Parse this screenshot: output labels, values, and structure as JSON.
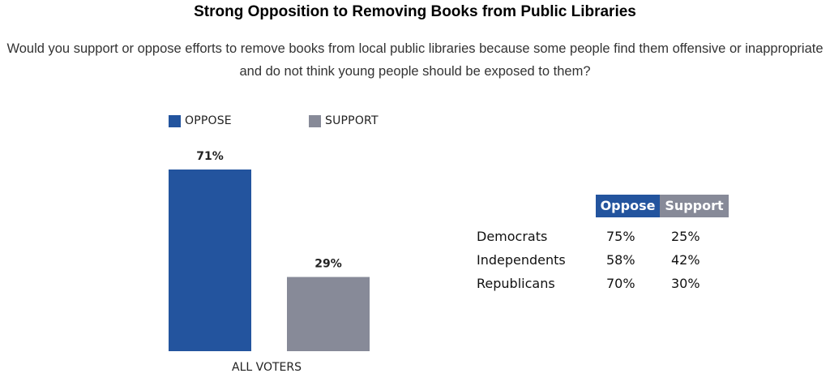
{
  "title": "Strong Opposition to Removing Books from Public Libraries",
  "subtitle": "Would you support or oppose efforts to remove books from local public libraries because some people find them offensive or inappropriate and do not think young people should be exposed to them?",
  "colors": {
    "oppose": "#23549e",
    "support": "#878a98"
  },
  "chart_data": {
    "type": "bar",
    "categories": [
      "ALL VOTERS"
    ],
    "series": [
      {
        "name": "OPPOSE",
        "values": [
          71
        ],
        "labels": [
          "71%"
        ]
      },
      {
        "name": "SUPPORT",
        "values": [
          29
        ],
        "labels": [
          "29%"
        ]
      }
    ],
    "ylim": [
      0,
      71
    ],
    "legend": "top-left",
    "grid": false
  },
  "table": {
    "headers": [
      "Oppose",
      "Support"
    ],
    "rows": [
      {
        "group": "Democrats",
        "oppose": "75%",
        "support": "25%"
      },
      {
        "group": "Independents",
        "oppose": "58%",
        "support": "42%"
      },
      {
        "group": "Republicans",
        "oppose": "70%",
        "support": "30%"
      }
    ]
  }
}
